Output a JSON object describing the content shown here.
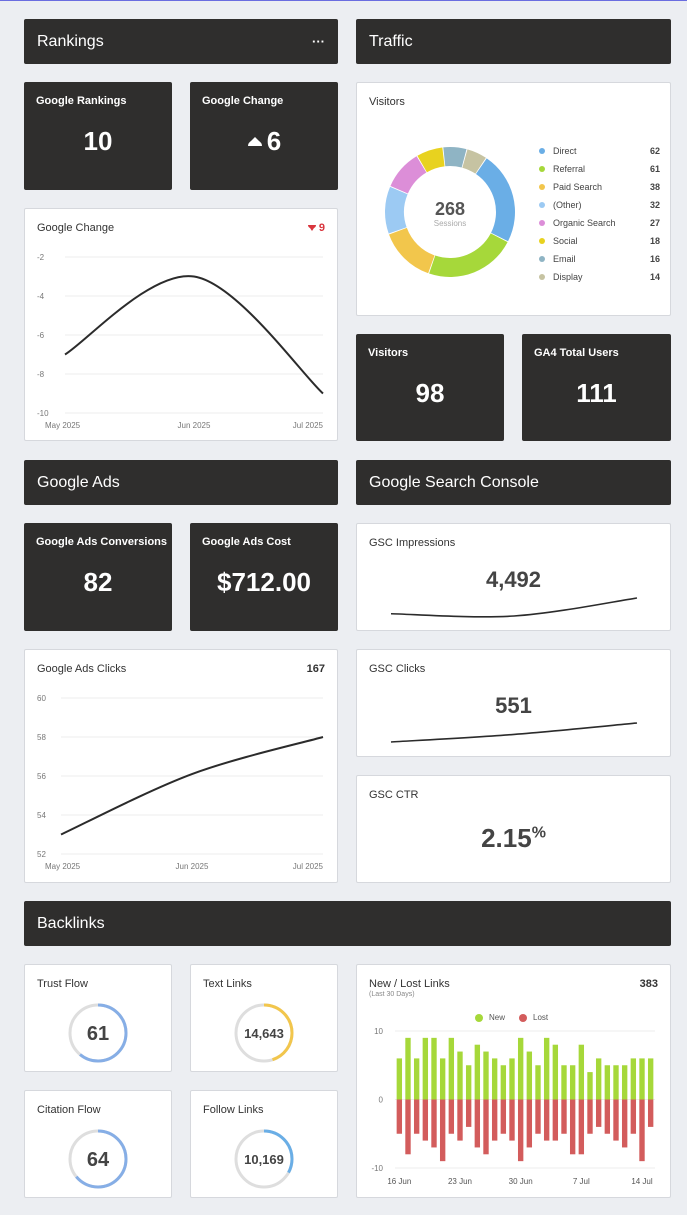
{
  "rankings": {
    "header": "Rankings",
    "menu_label": "···",
    "google_rankings": {
      "label": "Google Rankings",
      "value": "10"
    },
    "google_change": {
      "label": "Google Change",
      "value": "6"
    },
    "change_chart": {
      "title": "Google Change",
      "corner_value": "9",
      "y_ticks": [
        "-2",
        "-4",
        "-6",
        "-8",
        "-10"
      ],
      "x_ticks": [
        "May 2025",
        "Jun 2025",
        "Jul 2025"
      ]
    }
  },
  "traffic": {
    "header": "Traffic",
    "visitors_card": {
      "title": "Visitors",
      "center_value": "268",
      "center_label": "Sessions",
      "legend": [
        {
          "name": "Direct",
          "value": "62",
          "color": "#6aaee6"
        },
        {
          "name": "Referral",
          "value": "61",
          "color": "#a6d83a"
        },
        {
          "name": "Paid Search",
          "value": "38",
          "color": "#f2c64c"
        },
        {
          "name": "(Other)",
          "value": "32",
          "color": "#9ccaf3"
        },
        {
          "name": "Organic Search",
          "value": "27",
          "color": "#dc8ed8"
        },
        {
          "name": "Social",
          "value": "18",
          "color": "#e8d21f"
        },
        {
          "name": "Email",
          "value": "16",
          "color": "#8fb4c4"
        },
        {
          "name": "Display",
          "value": "14",
          "color": "#c6c3a2"
        }
      ]
    },
    "visitors_kpi": {
      "label": "Visitors",
      "value": "98"
    },
    "ga4_kpi": {
      "label": "GA4 Total Users",
      "value": "111"
    }
  },
  "google_ads": {
    "header": "Google Ads",
    "conversions": {
      "label": "Google Ads Conversions",
      "value": "82"
    },
    "cost": {
      "label": "Google Ads Cost",
      "value": "$712.00"
    },
    "clicks_chart": {
      "title": "Google Ads Clicks",
      "corner_value": "167",
      "y_ticks": [
        "60",
        "58",
        "56",
        "54",
        "52"
      ],
      "x_ticks": [
        "May 2025",
        "Jun 2025",
        "Jul 2025"
      ]
    }
  },
  "gsc": {
    "header": "Google Search Console",
    "impressions": {
      "title": "GSC Impressions",
      "value": "4,492"
    },
    "clicks": {
      "title": "GSC Clicks",
      "value": "551"
    },
    "ctr": {
      "title": "GSC CTR",
      "value": "2.15",
      "unit": "%"
    }
  },
  "backlinks": {
    "header": "Backlinks",
    "trust_flow": {
      "title": "Trust Flow",
      "value": "61",
      "color": "#86aee6",
      "fraction": 0.61
    },
    "text_links": {
      "title": "Text Links",
      "value": "14,643",
      "color": "#f2c64c",
      "fraction": 0.45
    },
    "citation_flow": {
      "title": "Citation Flow",
      "value": "64",
      "color": "#86aee6",
      "fraction": 0.64
    },
    "follow_links": {
      "title": "Follow Links",
      "value": "10,169",
      "color": "#6aaee6",
      "fraction": 0.33
    },
    "new_lost": {
      "title": "New / Lost Links",
      "subtitle": "Last 30 Days",
      "corner_value": "383",
      "legend_new": "New",
      "legend_lost": "Lost",
      "y_ticks": [
        "10",
        "0",
        "-10"
      ],
      "x_ticks": [
        "16 Jun",
        "23 Jun",
        "30 Jun",
        "7 Jul",
        "14 Jul"
      ]
    }
  },
  "chart_data": [
    {
      "type": "pie",
      "title": "Visitors",
      "categories": [
        "Direct",
        "Referral",
        "Paid Search",
        "(Other)",
        "Organic Search",
        "Social",
        "Email",
        "Display"
      ],
      "values": [
        62,
        61,
        38,
        32,
        27,
        18,
        16,
        14
      ]
    },
    {
      "type": "line",
      "title": "Google Change",
      "x": [
        "May 2025",
        "Jun 2025",
        "Jul 2025"
      ],
      "series": [
        {
          "values": [
            -7.0,
            -3.0,
            -9.0
          ]
        }
      ],
      "ylim": [
        -10,
        -2
      ]
    },
    {
      "type": "line",
      "title": "Google Ads Clicks",
      "x": [
        "May 2025",
        "Jun 2025",
        "Jul 2025"
      ],
      "series": [
        {
          "values": [
            53.0,
            56.1,
            58.0
          ]
        }
      ],
      "ylim": [
        52,
        60
      ]
    },
    {
      "type": "line",
      "title": "GSC Impressions",
      "x": [
        "start",
        "mid",
        "end"
      ],
      "series": [
        {
          "values": [
            0.3,
            0.2,
            1.0
          ]
        }
      ]
    },
    {
      "type": "line",
      "title": "GSC Clicks",
      "x": [
        "start",
        "mid",
        "end"
      ],
      "series": [
        {
          "values": [
            0.0,
            0.4,
            1.0
          ]
        }
      ]
    },
    {
      "type": "bar",
      "title": "New / Lost Links",
      "x": [
        "16 Jun",
        "",
        "",
        "",
        "",
        "",
        "",
        "23 Jun",
        "",
        "",
        "",
        "",
        "",
        "",
        "30 Jun",
        "",
        "",
        "",
        "",
        "",
        "",
        "7 Jul",
        "",
        "",
        "",
        "",
        "",
        "",
        "14 Jul",
        ""
      ],
      "series": [
        {
          "name": "New",
          "values": [
            6,
            9,
            6,
            9,
            9,
            6,
            9,
            7,
            5,
            8,
            7,
            6,
            5,
            6,
            9,
            7,
            5,
            9,
            8,
            5,
            5,
            8,
            4,
            6,
            5,
            5,
            5,
            6,
            6,
            6
          ]
        },
        {
          "name": "Lost",
          "values": [
            -5,
            -8,
            -5,
            -6,
            -7,
            -9,
            -5,
            -6,
            -4,
            -7,
            -8,
            -6,
            -5,
            -6,
            -9,
            -7,
            -5,
            -6,
            -6,
            -5,
            -8,
            -8,
            -5,
            -4,
            -5,
            -6,
            -7,
            -5,
            -9,
            -4
          ]
        }
      ],
      "ylim": [
        -10,
        10
      ]
    }
  ]
}
